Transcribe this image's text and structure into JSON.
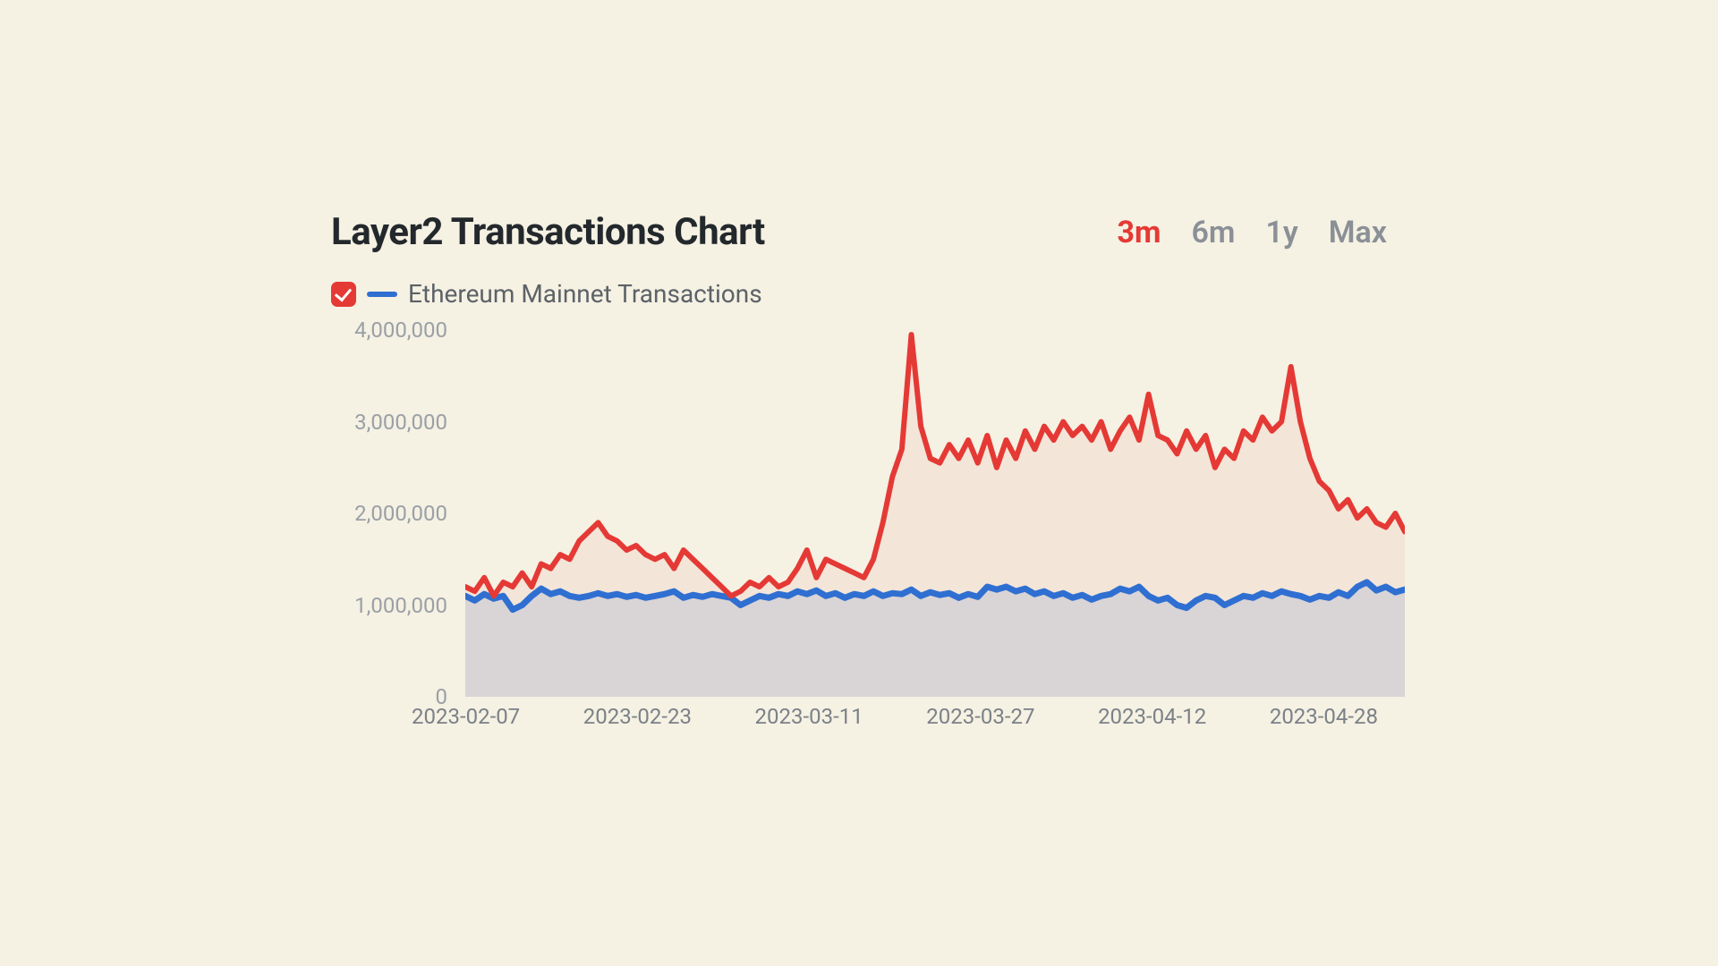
{
  "title": "Layer2 Transactions Chart",
  "ranges": [
    {
      "label": "3m",
      "active": true
    },
    {
      "label": "6m",
      "active": false
    },
    {
      "label": "1y",
      "active": false
    },
    {
      "label": "Max",
      "active": false
    }
  ],
  "legend": {
    "checkbox_checked": true,
    "checkbox_color": "#e53935",
    "swatch_color": "#2f6fd1",
    "label": "Ethereum Mainnet Transactions"
  },
  "chart": {
    "type": "line",
    "background_color": "#f5f1e3",
    "ylim": [
      0,
      4000000
    ],
    "yticks": [
      0,
      1000000,
      2000000,
      3000000,
      4000000
    ],
    "ytick_labels": [
      "0",
      "1,000,000",
      "2,000,000",
      "3,000,000",
      "4,000,000"
    ],
    "xtick_labels": [
      "2023-02-07",
      "2023-02-23",
      "2023-03-11",
      "2023-03-27",
      "2023-04-12",
      "2023-04-28"
    ],
    "axis_label_color": "#9aa0a6",
    "axis_label_fontsize": 24,
    "series": [
      {
        "name": "layer2",
        "color": "#e53935",
        "fill_color": "rgba(229,57,53,0.06)",
        "line_width": 6,
        "values": [
          1200000,
          1150000,
          1300000,
          1100000,
          1250000,
          1200000,
          1350000,
          1200000,
          1450000,
          1400000,
          1550000,
          1500000,
          1700000,
          1800000,
          1900000,
          1750000,
          1700000,
          1600000,
          1650000,
          1550000,
          1500000,
          1550000,
          1400000,
          1600000,
          1500000,
          1400000,
          1300000,
          1200000,
          1100000,
          1150000,
          1250000,
          1200000,
          1300000,
          1200000,
          1250000,
          1400000,
          1600000,
          1300000,
          1500000,
          1450000,
          1400000,
          1350000,
          1300000,
          1500000,
          1900000,
          2400000,
          2700000,
          3950000,
          2950000,
          2600000,
          2550000,
          2750000,
          2600000,
          2800000,
          2550000,
          2850000,
          2500000,
          2800000,
          2600000,
          2900000,
          2700000,
          2950000,
          2800000,
          3000000,
          2850000,
          2950000,
          2800000,
          3000000,
          2700000,
          2900000,
          3050000,
          2800000,
          3300000,
          2850000,
          2800000,
          2650000,
          2900000,
          2700000,
          2850000,
          2500000,
          2700000,
          2600000,
          2900000,
          2800000,
          3050000,
          2900000,
          3000000,
          3600000,
          3000000,
          2600000,
          2350000,
          2250000,
          2050000,
          2150000,
          1950000,
          2050000,
          1900000,
          1850000,
          2000000,
          1800000
        ]
      },
      {
        "name": "ethereum_mainnet",
        "color": "#2f6fd1",
        "fill_color": "rgba(47,111,209,0.14)",
        "line_width": 7,
        "values": [
          1100000,
          1050000,
          1120000,
          1070000,
          1100000,
          950000,
          1000000,
          1100000,
          1180000,
          1120000,
          1150000,
          1100000,
          1080000,
          1100000,
          1130000,
          1100000,
          1120000,
          1090000,
          1110000,
          1080000,
          1100000,
          1120000,
          1150000,
          1080000,
          1110000,
          1090000,
          1120000,
          1100000,
          1080000,
          1000000,
          1050000,
          1100000,
          1080000,
          1120000,
          1100000,
          1150000,
          1120000,
          1160000,
          1100000,
          1130000,
          1080000,
          1120000,
          1100000,
          1150000,
          1100000,
          1130000,
          1120000,
          1170000,
          1100000,
          1140000,
          1110000,
          1130000,
          1080000,
          1120000,
          1090000,
          1200000,
          1170000,
          1200000,
          1150000,
          1180000,
          1120000,
          1150000,
          1100000,
          1130000,
          1080000,
          1110000,
          1060000,
          1100000,
          1120000,
          1180000,
          1150000,
          1200000,
          1100000,
          1050000,
          1080000,
          1000000,
          970000,
          1050000,
          1100000,
          1080000,
          1000000,
          1050000,
          1100000,
          1080000,
          1130000,
          1100000,
          1150000,
          1120000,
          1100000,
          1060000,
          1100000,
          1080000,
          1140000,
          1100000,
          1200000,
          1250000,
          1160000,
          1200000,
          1140000,
          1170000
        ]
      }
    ]
  }
}
